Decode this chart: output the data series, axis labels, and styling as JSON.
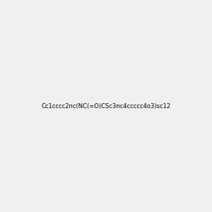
{
  "smiles": "Cc1cccc2nc(NC(=O)CSc3nc4ccccc4o3)sc12",
  "title": "",
  "img_size": [
    300,
    300
  ],
  "background_color": "#f0f0f0",
  "atom_colors": {
    "N": "blue",
    "O": "red",
    "S": "yellow"
  }
}
